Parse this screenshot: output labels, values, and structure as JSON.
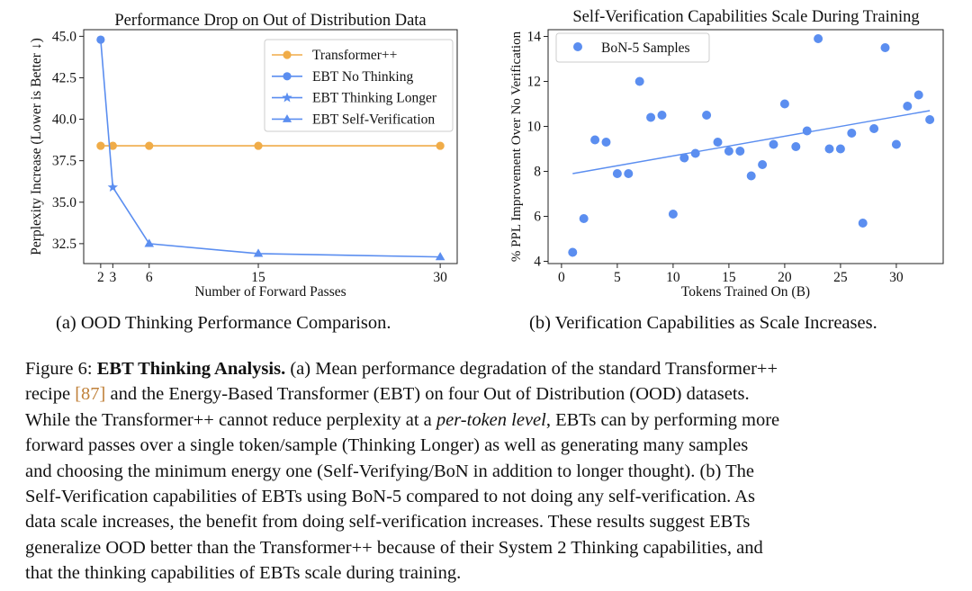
{
  "chart_data": [
    {
      "type": "line",
      "title": "Performance Drop on Out of Distribution Data",
      "xlabel": "Number of Forward Passes",
      "ylabel": "Perplexity Increase (Lower is Better ↓)",
      "x": [
        2,
        3,
        6,
        15,
        30
      ],
      "xticks": [
        "2",
        "3",
        "6",
        "15",
        "30"
      ],
      "yticks": [
        "32.5",
        "35.0",
        "37.5",
        "40.0",
        "42.5",
        "45.0"
      ],
      "ylim": [
        31.3,
        45.4
      ],
      "legend_position": "top-right",
      "colors": {
        "transformer": "#f0ac48",
        "ebt": "#5b8ef0"
      },
      "series": [
        {
          "name": "Transformer++",
          "marker": "circle",
          "values": [
            38.4,
            38.4,
            38.4,
            38.4,
            38.4
          ]
        },
        {
          "name": "EBT No Thinking",
          "marker": "circle",
          "x": [
            2
          ],
          "values": [
            44.8
          ]
        },
        {
          "name": "EBT Thinking Longer",
          "marker": "star",
          "x": [
            2,
            3
          ],
          "values": [
            44.8,
            35.9
          ]
        },
        {
          "name": "EBT Self-Verification",
          "marker": "triangle",
          "x": [
            3,
            6,
            15,
            30
          ],
          "values": [
            35.9,
            32.5,
            31.9,
            31.7
          ]
        }
      ],
      "subcaption": "(a) OOD Thinking Performance Comparison."
    },
    {
      "type": "scatter",
      "title": "Self-Verification Capabilities Scale During Training",
      "xlabel": "Tokens Trained On (B)",
      "ylabel": "% PPL Improvement Over No Verification",
      "xticks": [
        "0",
        "5",
        "10",
        "15",
        "20",
        "25",
        "30"
      ],
      "yticks": [
        "4",
        "6",
        "8",
        "10",
        "12",
        "14"
      ],
      "xlim": [
        -1.2,
        34.2
      ],
      "ylim": [
        3.9,
        14.3
      ],
      "legend_position": "top-left",
      "colors": {
        "points": "#5b8ef0",
        "trend": "#5b8ef0"
      },
      "series": [
        {
          "name": "BoN-5 Samples",
          "x": [
            1,
            2,
            3,
            4,
            5,
            6,
            7,
            8,
            9,
            10,
            11,
            12,
            13,
            14,
            15,
            16,
            17,
            18,
            19,
            20,
            21,
            22,
            23,
            24,
            25,
            26,
            27,
            28,
            29,
            30,
            31,
            32,
            33
          ],
          "values": [
            4.4,
            5.9,
            9.4,
            9.3,
            7.9,
            7.9,
            12.0,
            10.4,
            10.5,
            6.1,
            8.6,
            8.8,
            10.5,
            9.3,
            8.9,
            8.9,
            7.8,
            8.3,
            9.2,
            11.0,
            9.1,
            9.8,
            13.9,
            9.0,
            9.0,
            9.7,
            5.7,
            9.9,
            13.5,
            9.2,
            10.9,
            11.4,
            10.3
          ]
        }
      ],
      "trendline": {
        "x": [
          1,
          33
        ],
        "values": [
          7.9,
          10.7
        ]
      },
      "subcaption": "(b) Verification Capabilities as Scale Increases."
    }
  ],
  "caption": {
    "lines": [
      [
        {
          "t": "Figure 6: "
        },
        {
          "t": "EBT Thinking Analysis.",
          "s": "b"
        },
        {
          "t": " (a) Mean performance degradation of the standard Transformer++"
        }
      ],
      [
        {
          "t": "recipe "
        },
        {
          "t": "[87]",
          "s": "cite"
        },
        {
          "t": " and the Energy-Based Transformer (EBT) on four Out of Distribution (OOD) datasets."
        }
      ],
      [
        {
          "t": "While the Transformer++ cannot reduce perplexity at a "
        },
        {
          "t": "per-token level",
          "s": "i"
        },
        {
          "t": ", EBTs can by performing more"
        }
      ],
      [
        {
          "t": "forward passes over a single token/sample (Thinking Longer) as well as generating many samples"
        }
      ],
      [
        {
          "t": "and choosing the minimum energy one (Self-Verifying/BoN in addition to longer thought). (b) The"
        }
      ],
      [
        {
          "t": "Self-Verification capabilities of EBTs using BoN-5 compared to not doing any self-verification. As"
        }
      ],
      [
        {
          "t": "data scale increases, the benefit from doing self-verification increases. These results suggest EBTs"
        }
      ],
      [
        {
          "t": "generalize OOD better than the Transformer++ because of their System 2 Thinking capabilities, and"
        }
      ],
      [
        {
          "t": "that the thinking capabilities of EBTs scale during training."
        }
      ]
    ]
  }
}
